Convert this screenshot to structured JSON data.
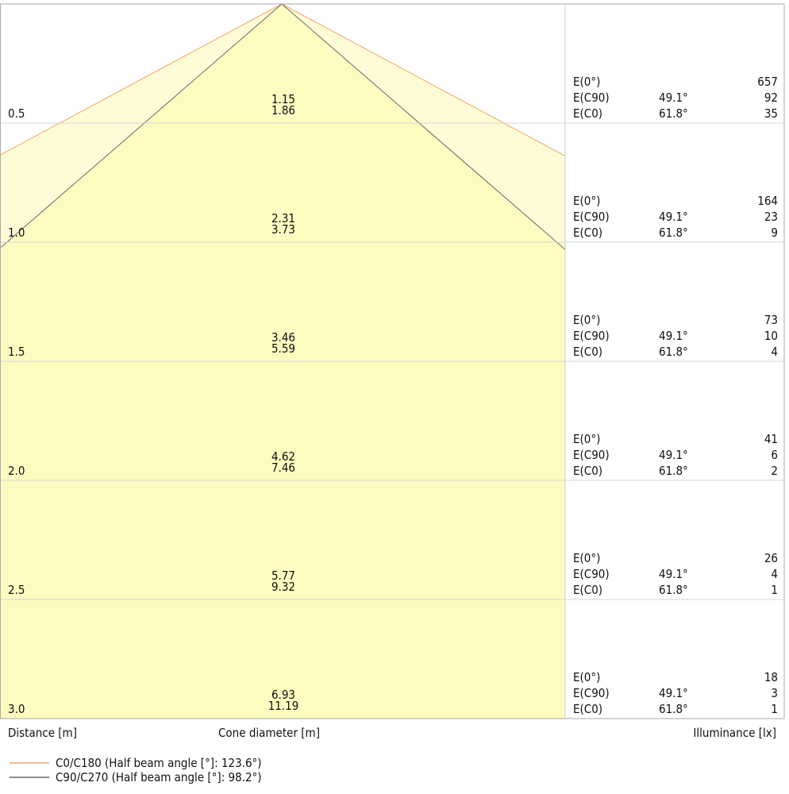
{
  "chart_data": {
    "type": "cone-diagram",
    "series": [
      {
        "name": "C0/C180 (Half beam angle [°]: 123.6°)",
        "half_angle": 61.8,
        "color": "#f4a460",
        "fill": "#fefcd6"
      },
      {
        "name": "C90/C270 (Half beam angle [°]: 98.2°)",
        "half_angle": 49.1,
        "color": "#666666",
        "fill": "#fefbc0"
      }
    ],
    "rows": [
      {
        "distance": "0.5",
        "d_c90": "1.15",
        "d_c0": "1.86",
        "e0": "657",
        "ec90": "92",
        "ec0": "35"
      },
      {
        "distance": "1.0",
        "d_c90": "2.31",
        "d_c0": "3.73",
        "e0": "164",
        "ec90": "23",
        "ec0": "9"
      },
      {
        "distance": "1.5",
        "d_c90": "3.46",
        "d_c0": "5.59",
        "e0": "73",
        "ec90": "10",
        "ec0": "4"
      },
      {
        "distance": "2.0",
        "d_c90": "4.62",
        "d_c0": "7.46",
        "e0": "41",
        "ec90": "6",
        "ec0": "2"
      },
      {
        "distance": "2.5",
        "d_c90": "5.77",
        "d_c0": "9.32",
        "e0": "26",
        "ec90": "4",
        "ec0": "1"
      },
      {
        "distance": "3.0",
        "d_c90": "6.93",
        "d_c0": "11.19",
        "e0": "18",
        "ec90": "3",
        "ec0": "1"
      }
    ],
    "row_labels": {
      "e0": "E(0°)",
      "ec90": "E(C90)",
      "ec0": "E(C0)",
      "angle_c90": "49.1°",
      "angle_c0": "61.8°"
    },
    "xlabel_left": "Distance [m]",
    "xlabel_center": "Cone diameter [m]",
    "xlabel_right": "Illuminance [lx]",
    "max_distance": 3.0
  }
}
